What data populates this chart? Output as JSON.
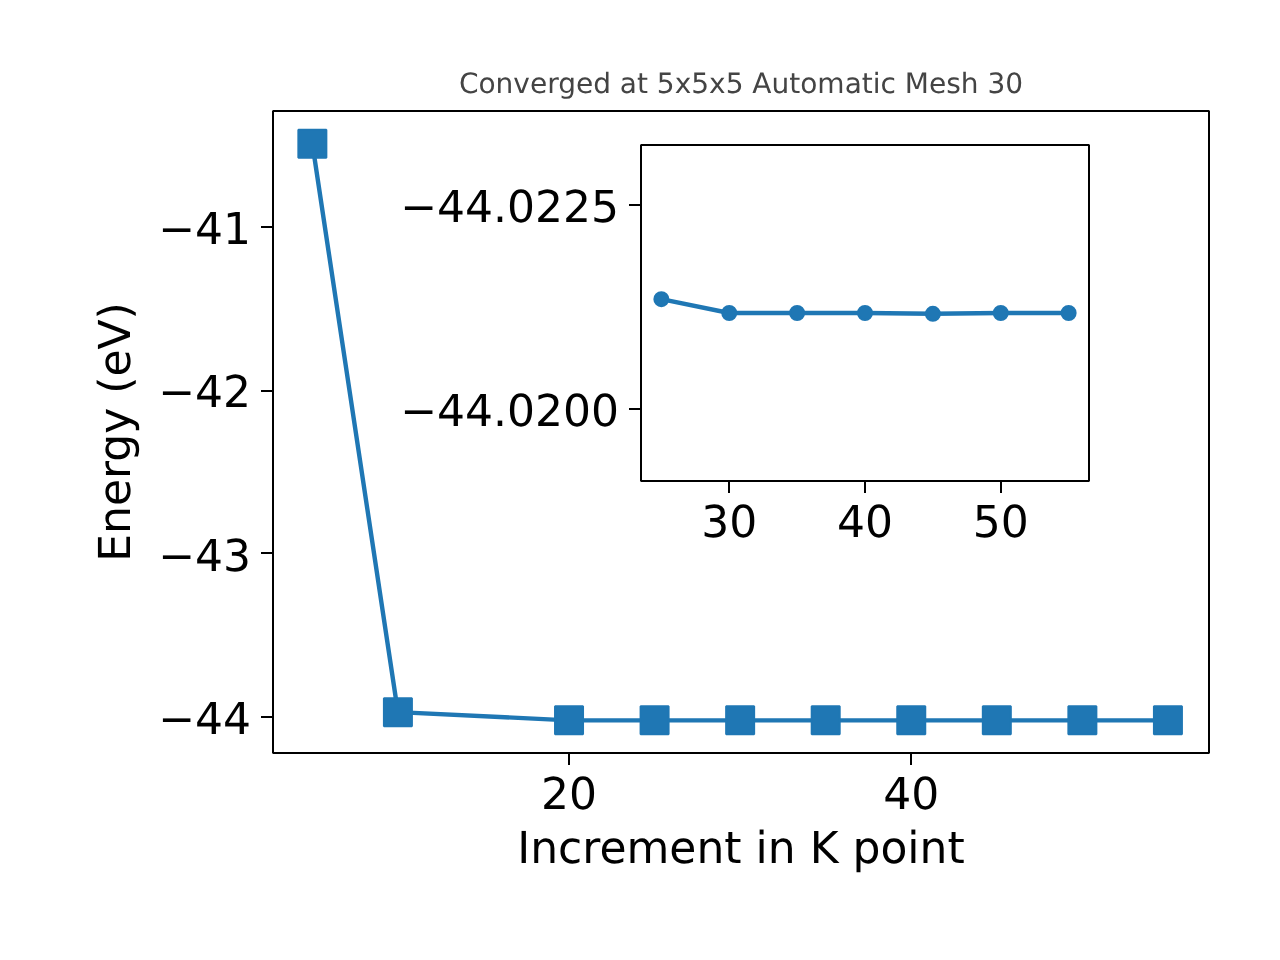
{
  "chart_data": [
    {
      "type": "line",
      "title": "Converged at 5x5x5 Automatic Mesh 30",
      "xlabel": "Increment in K point",
      "ylabel": "Energy (eV)",
      "x": [
        5,
        10,
        20,
        25,
        30,
        35,
        40,
        45,
        50,
        55
      ],
      "series": [
        {
          "color": "#1f77b4",
          "values": [
            -40.49,
            -43.97,
            -44.02,
            -44.02,
            -44.02,
            -44.02,
            -44.02,
            -44.02,
            -44.02,
            -44.02
          ]
        }
      ],
      "xlim": [
        2.7,
        57.4
      ],
      "ylim": [
        -44.22,
        -40.29
      ],
      "xticks": [
        20,
        40
      ],
      "yticks": [
        {
          "value": -44,
          "label": "−44"
        },
        {
          "value": -43,
          "label": "−43"
        },
        {
          "value": -42,
          "label": "−42"
        },
        {
          "value": -41,
          "label": "−41"
        }
      ],
      "marker": "square",
      "grid": false
    },
    {
      "type": "line",
      "x": [
        25,
        30,
        35,
        40,
        45,
        50,
        55
      ],
      "series": [
        {
          "color": "#1f77b4",
          "values": [
            -44.02135,
            -44.02118,
            -44.02118,
            -44.02118,
            -44.02117,
            -44.02118,
            -44.02118
          ]
        }
      ],
      "xlim": [
        23.5,
        56.5
      ],
      "ylim": [
        -44.01912,
        -44.02324
      ],
      "xticks": [
        30,
        40,
        50
      ],
      "yticks": [
        {
          "value": -44.0225,
          "label": "−44.0225"
        },
        {
          "value": -44.02,
          "label": "−44.0200"
        }
      ],
      "marker": "circle",
      "grid": false
    }
  ]
}
